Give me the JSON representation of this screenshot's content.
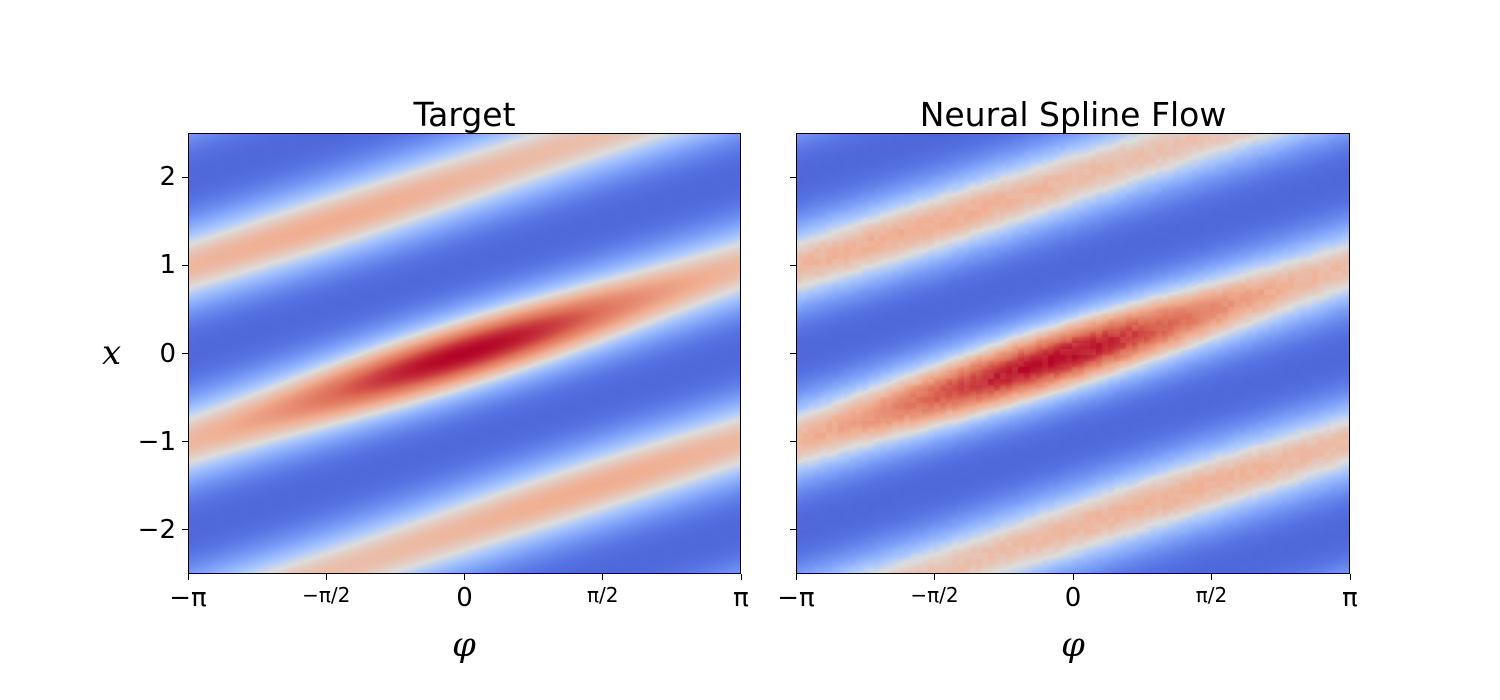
{
  "chart_data": [
    {
      "type": "heatmap",
      "title": "Target",
      "xlabel": "φ",
      "ylabel": "x",
      "xlim": [
        -3.14159,
        3.14159
      ],
      "ylim": [
        -2.5,
        2.5
      ],
      "xticks": [
        {
          "value": -3.14159,
          "label": "−π"
        },
        {
          "value": -1.5708,
          "label": "−π/2"
        },
        {
          "value": 0,
          "label": "0"
        },
        {
          "value": 1.5708,
          "label": "π/2"
        },
        {
          "value": 3.14159,
          "label": "π"
        }
      ],
      "yticks": [
        {
          "value": 2,
          "label": "2"
        },
        {
          "value": 1,
          "label": "1"
        },
        {
          "value": 0,
          "label": "0"
        },
        {
          "value": -1,
          "label": "−1"
        },
        {
          "value": -2,
          "label": "−2"
        }
      ],
      "colormap": "coolwarm",
      "density": {
        "ridge_slope": 0.3183,
        "ridge_center_x": 0,
        "peak_phi": 0,
        "peak_x": 0
      },
      "noise": 0
    },
    {
      "type": "heatmap",
      "title": "Neural Spline Flow",
      "xlabel": "φ",
      "ylabel": "",
      "xlim": [
        -3.14159,
        3.14159
      ],
      "ylim": [
        -2.5,
        2.5
      ],
      "xticks": [
        {
          "value": -3.14159,
          "label": "−π"
        },
        {
          "value": -1.5708,
          "label": "−π/2"
        },
        {
          "value": 0,
          "label": "0"
        },
        {
          "value": 1.5708,
          "label": "π/2"
        },
        {
          "value": 3.14159,
          "label": "π"
        }
      ],
      "yticks": [
        {
          "value": 2,
          "label": ""
        },
        {
          "value": 1,
          "label": ""
        },
        {
          "value": 0,
          "label": ""
        },
        {
          "value": -1,
          "label": ""
        },
        {
          "value": -2,
          "label": ""
        }
      ],
      "colormap": "coolwarm",
      "density": {
        "ridge_slope": 0.3183,
        "ridge_center_x": 0,
        "peak_phi": -0.3,
        "peak_x": -0.05
      },
      "noise": 0.06
    }
  ],
  "colors": {
    "cold": "#3b4cc0",
    "neutral": "#dddddd",
    "hot": "#b40426"
  }
}
